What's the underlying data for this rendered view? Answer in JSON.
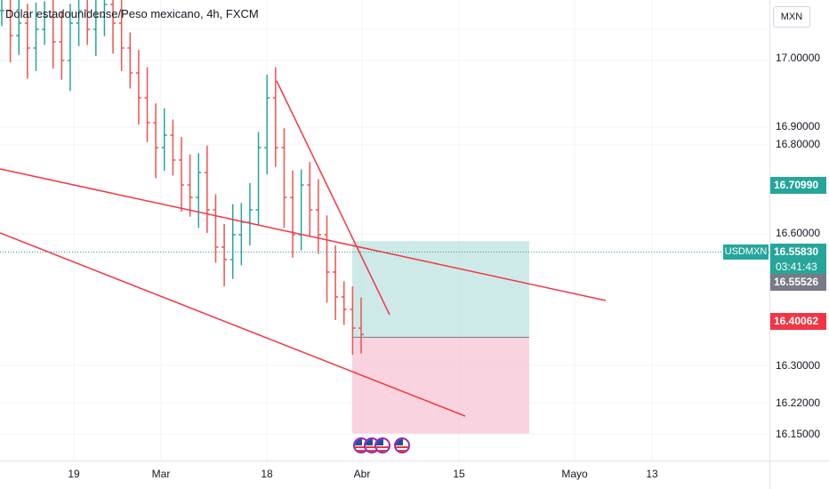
{
  "header": {
    "title": "Dólar estadounidense/Peso mexicano, 4h, FXCM",
    "currency_button": "MXN"
  },
  "price_labels": {
    "target": "16.70990",
    "symbol": "USDMXN",
    "last": "16.55830",
    "countdown": "03:41:43",
    "entry": "16.55526",
    "stop": "16.40062"
  },
  "colors": {
    "up": "#26a69a",
    "down": "#ef5350",
    "trendline": "#f23645",
    "profit_zone": "#b2dfdb",
    "loss_zone": "#f8bbd0",
    "stop_tag": "#f23645",
    "entry_tag": "#787b86"
  },
  "events": {
    "icon": "us-flag-icon",
    "count": 4
  },
  "chart_data": {
    "type": "line",
    "subtype": "ohlc-bars",
    "x_axis": [
      "19",
      "Mar",
      "18",
      "Abr",
      "15",
      "Mayo",
      "13"
    ],
    "y_axis": [
      "17.00000",
      "16.90000",
      "16.80000",
      "16.60000",
      "16.30000",
      "16.22000",
      "16.15000"
    ],
    "ylim": [
      16.1,
      17.1
    ],
    "grid": true,
    "series": [
      {
        "values": [
          17.08,
          17.04,
          17.06,
          17.02,
          17.05,
          17.07,
          17.03,
          17.0,
          17.06,
          17.08,
          17.05,
          17.07,
          17.09,
          17.06,
          17.02,
          16.98,
          16.94,
          16.9,
          16.86,
          16.88,
          16.84,
          16.8,
          16.78,
          16.82,
          16.76,
          16.7,
          16.68,
          16.72,
          16.74,
          16.76,
          16.86,
          16.94,
          16.86,
          16.78,
          16.72,
          16.8,
          16.76,
          16.72,
          16.66,
          16.62,
          16.6,
          16.57,
          16.56
        ]
      }
    ],
    "trendlines": [
      {
        "from": [
          "Mar",
          16.74
        ],
        "to": [
          "Abr",
          16.57
        ]
      },
      {
        "from": [
          "Mar",
          16.62
        ],
        "to": [
          "Abr",
          16.25
        ]
      },
      {
        "from": [
          "18",
          16.94
        ],
        "to": [
          "Abr",
          16.47
        ]
      }
    ],
    "position": {
      "entry": 16.55526,
      "target": 16.7099,
      "stop": 16.40062
    }
  }
}
